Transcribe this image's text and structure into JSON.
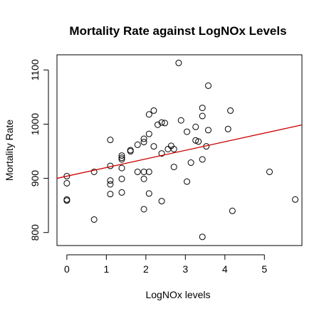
{
  "chart_data": {
    "type": "scatter",
    "title": "Mortality Rate against LogNOx Levels",
    "xlabel": "LogNOx levels",
    "ylabel": "Mortality Rate",
    "xlim": [
      -0.25,
      5.95
    ],
    "ylim": [
      776,
      1128
    ],
    "xticks": [
      0,
      1,
      2,
      3,
      4,
      5
    ],
    "yticks": [
      800,
      900,
      1000,
      1100
    ],
    "grid": false,
    "point_style": "open-circle",
    "points": [
      {
        "x": 0.0,
        "y": 904
      },
      {
        "x": 0.0,
        "y": 891
      },
      {
        "x": 0.0,
        "y": 861
      },
      {
        "x": 0.0,
        "y": 859
      },
      {
        "x": 0.69,
        "y": 912
      },
      {
        "x": 0.69,
        "y": 824
      },
      {
        "x": 1.1,
        "y": 971
      },
      {
        "x": 1.1,
        "y": 923
      },
      {
        "x": 1.1,
        "y": 896
      },
      {
        "x": 1.1,
        "y": 889
      },
      {
        "x": 1.1,
        "y": 871
      },
      {
        "x": 1.39,
        "y": 942
      },
      {
        "x": 1.39,
        "y": 938
      },
      {
        "x": 1.39,
        "y": 935
      },
      {
        "x": 1.39,
        "y": 919
      },
      {
        "x": 1.39,
        "y": 899
      },
      {
        "x": 1.39,
        "y": 874
      },
      {
        "x": 1.61,
        "y": 952
      },
      {
        "x": 1.61,
        "y": 950
      },
      {
        "x": 1.79,
        "y": 962
      },
      {
        "x": 1.79,
        "y": 912
      },
      {
        "x": 1.95,
        "y": 973
      },
      {
        "x": 1.95,
        "y": 967
      },
      {
        "x": 1.95,
        "y": 912
      },
      {
        "x": 1.95,
        "y": 899
      },
      {
        "x": 1.95,
        "y": 843
      },
      {
        "x": 2.08,
        "y": 1018
      },
      {
        "x": 2.08,
        "y": 982
      },
      {
        "x": 2.08,
        "y": 912
      },
      {
        "x": 2.08,
        "y": 872
      },
      {
        "x": 2.2,
        "y": 1025
      },
      {
        "x": 2.2,
        "y": 959
      },
      {
        "x": 2.3,
        "y": 999
      },
      {
        "x": 2.4,
        "y": 1003
      },
      {
        "x": 2.4,
        "y": 946
      },
      {
        "x": 2.4,
        "y": 858
      },
      {
        "x": 2.48,
        "y": 1002
      },
      {
        "x": 2.56,
        "y": 954
      },
      {
        "x": 2.64,
        "y": 960
      },
      {
        "x": 2.71,
        "y": 954
      },
      {
        "x": 2.71,
        "y": 921
      },
      {
        "x": 2.83,
        "y": 1113
      },
      {
        "x": 2.89,
        "y": 1007
      },
      {
        "x": 3.04,
        "y": 986
      },
      {
        "x": 3.04,
        "y": 894
      },
      {
        "x": 3.14,
        "y": 929
      },
      {
        "x": 3.26,
        "y": 995
      },
      {
        "x": 3.26,
        "y": 970
      },
      {
        "x": 3.33,
        "y": 968
      },
      {
        "x": 3.43,
        "y": 1030
      },
      {
        "x": 3.43,
        "y": 1015
      },
      {
        "x": 3.43,
        "y": 935
      },
      {
        "x": 3.43,
        "y": 792
      },
      {
        "x": 3.53,
        "y": 959
      },
      {
        "x": 3.58,
        "y": 1071
      },
      {
        "x": 3.58,
        "y": 989
      },
      {
        "x": 4.08,
        "y": 991
      },
      {
        "x": 4.14,
        "y": 1025
      },
      {
        "x": 4.19,
        "y": 840
      },
      {
        "x": 5.13,
        "y": 912
      },
      {
        "x": 5.78,
        "y": 861
      }
    ],
    "fit_line": {
      "intercept": 904,
      "slope": 15.9,
      "color": "#cc0000"
    }
  }
}
